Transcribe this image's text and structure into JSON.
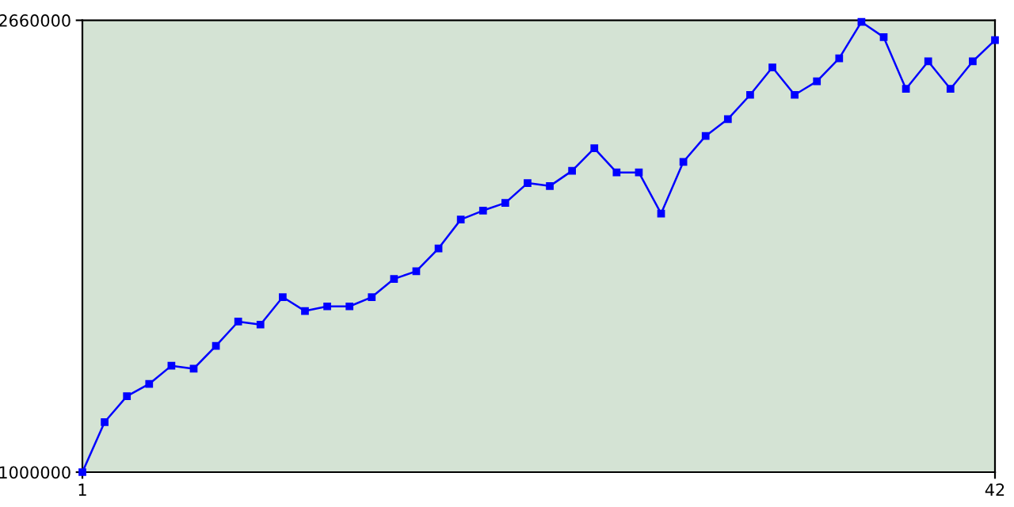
{
  "chart_data": {
    "type": "line",
    "x": [
      1,
      2,
      3,
      4,
      5,
      6,
      7,
      8,
      9,
      10,
      11,
      12,
      13,
      14,
      15,
      16,
      17,
      18,
      19,
      20,
      21,
      22,
      23,
      24,
      25,
      26,
      27,
      28,
      29,
      30,
      31,
      32,
      33,
      34,
      35,
      36,
      37,
      38,
      39,
      40,
      41,
      42
    ],
    "series": [
      {
        "color": "#0000ff",
        "values": [
          1000000,
          1184000,
          1279000,
          1324000,
          1391000,
          1380000,
          1464000,
          1553000,
          1542000,
          1643000,
          1592000,
          1609000,
          1609000,
          1643000,
          1710000,
          1738000,
          1822000,
          1928000,
          1961000,
          1989000,
          2062000,
          2051000,
          2107000,
          2190000,
          2101000,
          2101000,
          1950000,
          2140000,
          2235000,
          2297000,
          2386000,
          2487000,
          2386000,
          2436000,
          2520000,
          2654000,
          2598000,
          2408000,
          2509000,
          2408000,
          2509000,
          2587000
        ]
      }
    ],
    "xlim": [
      1,
      42
    ],
    "ylim": [
      1000000,
      2660000
    ],
    "xticks": [
      1,
      42
    ],
    "yticks": [
      1000000,
      2660000
    ],
    "marker": "square",
    "line_style": "solid",
    "grid": false,
    "legend": false
  }
}
